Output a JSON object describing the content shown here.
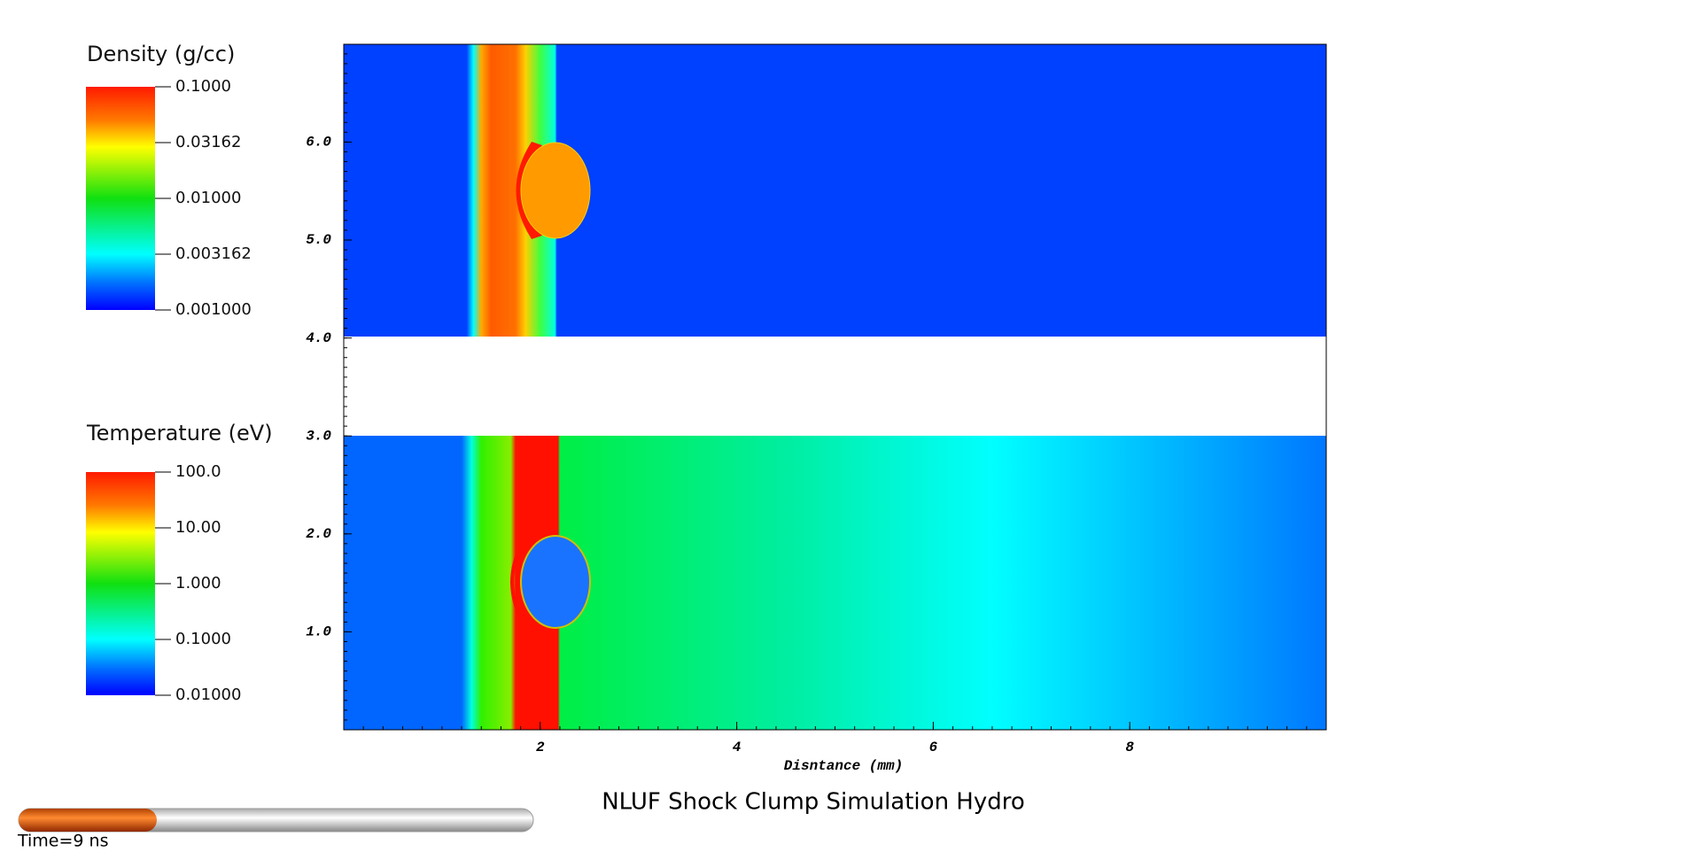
{
  "plot_title": "NLUF Shock Clump Simulation Hydro",
  "time_label": "Time=9 ns",
  "density_legend": {
    "title": "Density (g/cc)",
    "ticks": [
      "0.1000",
      "0.03162",
      "0.01000",
      "0.003162",
      "0.001000"
    ]
  },
  "temperature_legend": {
    "title": "Temperature (eV)",
    "ticks": [
      "100.0",
      "10.00",
      "1.000",
      "0.1000",
      "0.01000"
    ]
  },
  "axes": {
    "x_label": "Disntance (mm)",
    "x_ticks": [
      "2",
      "4",
      "6",
      "8"
    ],
    "y_ticks": [
      "6.0",
      "5.0",
      "4.0",
      "3.0",
      "2.0",
      "1.0"
    ]
  }
}
